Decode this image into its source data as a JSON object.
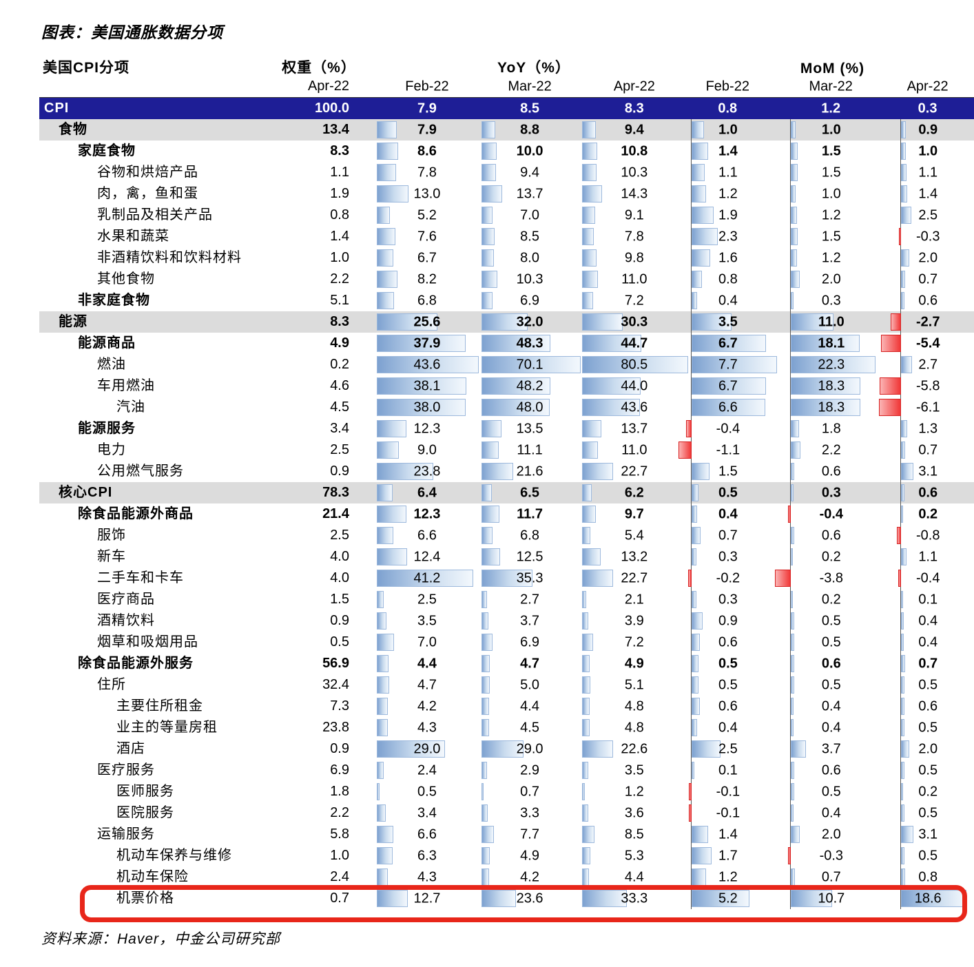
{
  "colors": {
    "header_navy": "#1E1E96",
    "header_text": "#FFFFFF",
    "section_gray": "#DCDCDC",
    "bar_blue_start": "#7DA1D0",
    "bar_blue_end": "#F3F8FD",
    "bar_blue_border": "#9CB8DC",
    "bar_red_start": "#F03838",
    "bar_red_end": "#FBB4B4",
    "bar_red_border": "#D62020",
    "highlight_box": "#E8261A",
    "axis_line": "#555555"
  },
  "header": {
    "label": "美国CPI分项",
    "weight_group": "权重（%）",
    "yoy_group": "YoY（%）",
    "mom_group": "MoM (%)",
    "sub_dates": [
      "Apr-22",
      "Feb-22",
      "Mar-22",
      "Apr-22",
      "Feb-22",
      "Mar-22",
      "Apr-22"
    ]
  },
  "chart_data": {
    "type": "table",
    "title": "图表：美国通胀数据分项",
    "source": "资料来源：Haver，中金公司研究部",
    "columns": [
      "美国CPI分项",
      "权重（%） Apr-22",
      "YoY（%） Feb-22",
      "YoY（%） Mar-22",
      "YoY（%） Apr-22",
      "MoM（%） Feb-22",
      "MoM（%） Mar-22",
      "MoM（%） Apr-22"
    ],
    "highlighted_row": "机票价格",
    "rows": [
      {
        "label": "CPI",
        "indent": 0,
        "style": "cpi",
        "weight": 100.0,
        "yoy": [
          7.9,
          8.5,
          8.3
        ],
        "mom": [
          0.8,
          1.2,
          0.3
        ]
      },
      {
        "label": "食物",
        "indent": 1,
        "style": "section",
        "weight": 13.4,
        "yoy": [
          7.9,
          8.8,
          9.4
        ],
        "mom": [
          1.0,
          1.0,
          0.9
        ]
      },
      {
        "label": "家庭食物",
        "indent": 2,
        "style": "bold",
        "weight": 8.3,
        "yoy": [
          8.6,
          10.0,
          10.8
        ],
        "mom": [
          1.4,
          1.5,
          1.0
        ]
      },
      {
        "label": "谷物和烘焙产品",
        "indent": 3,
        "style": "leaf",
        "weight": 1.1,
        "yoy": [
          7.8,
          9.4,
          10.3
        ],
        "mom": [
          1.1,
          1.5,
          1.1
        ]
      },
      {
        "label": "肉，禽，鱼和蛋",
        "indent": 3,
        "style": "leaf",
        "weight": 1.9,
        "yoy": [
          13.0,
          13.7,
          14.3
        ],
        "mom": [
          1.2,
          1.0,
          1.4
        ]
      },
      {
        "label": "乳制品及相关产品",
        "indent": 3,
        "style": "leaf",
        "weight": 0.8,
        "yoy": [
          5.2,
          7.0,
          9.1
        ],
        "mom": [
          1.9,
          1.2,
          2.5
        ]
      },
      {
        "label": "水果和蔬菜",
        "indent": 3,
        "style": "leaf",
        "weight": 1.4,
        "yoy": [
          7.6,
          8.5,
          7.8
        ],
        "mom": [
          2.3,
          1.5,
          -0.3
        ]
      },
      {
        "label": "非酒精饮料和饮料材料",
        "indent": 3,
        "style": "leaf",
        "weight": 1.0,
        "yoy": [
          6.7,
          8.0,
          9.8
        ],
        "mom": [
          1.6,
          1.2,
          2.0
        ]
      },
      {
        "label": "其他食物",
        "indent": 3,
        "style": "leaf",
        "weight": 2.2,
        "yoy": [
          8.2,
          10.3,
          11.0
        ],
        "mom": [
          0.8,
          2.0,
          0.7
        ]
      },
      {
        "label": "非家庭食物",
        "indent": 2,
        "style": "labelbold",
        "weight": 5.1,
        "yoy": [
          6.8,
          6.9,
          7.2
        ],
        "mom": [
          0.4,
          0.3,
          0.6
        ]
      },
      {
        "label": "能源",
        "indent": 1,
        "style": "section",
        "weight": 8.3,
        "yoy": [
          25.6,
          32.0,
          30.3
        ],
        "mom": [
          3.5,
          11.0,
          -2.7
        ]
      },
      {
        "label": "能源商品",
        "indent": 2,
        "style": "bold",
        "weight": 4.9,
        "yoy": [
          37.9,
          48.3,
          44.7
        ],
        "mom": [
          6.7,
          18.1,
          -5.4
        ]
      },
      {
        "label": "燃油",
        "indent": 3,
        "style": "leaf",
        "weight": 0.2,
        "yoy": [
          43.6,
          70.1,
          80.5
        ],
        "mom": [
          7.7,
          22.3,
          2.7
        ]
      },
      {
        "label": "车用燃油",
        "indent": 3,
        "style": "leaf",
        "weight": 4.6,
        "yoy": [
          38.1,
          48.2,
          44.0
        ],
        "mom": [
          6.7,
          18.3,
          -5.8
        ]
      },
      {
        "label": "汽油",
        "indent": 4,
        "style": "leaf",
        "weight": 4.5,
        "yoy": [
          38.0,
          48.0,
          43.6
        ],
        "mom": [
          6.6,
          18.3,
          -6.1
        ]
      },
      {
        "label": "能源服务",
        "indent": 2,
        "style": "labelbold",
        "weight": 3.4,
        "yoy": [
          12.3,
          13.5,
          13.7
        ],
        "mom": [
          -0.4,
          1.8,
          1.3
        ]
      },
      {
        "label": "电力",
        "indent": 3,
        "style": "leaf",
        "weight": 2.5,
        "yoy": [
          9.0,
          11.1,
          11.0
        ],
        "mom": [
          -1.1,
          2.2,
          0.7
        ]
      },
      {
        "label": "公用燃气服务",
        "indent": 3,
        "style": "leaf",
        "weight": 0.9,
        "yoy": [
          23.8,
          21.6,
          22.7
        ],
        "mom": [
          1.5,
          0.6,
          3.1
        ]
      },
      {
        "label": "核心CPI",
        "indent": 1,
        "style": "section",
        "weight": 78.3,
        "yoy": [
          6.4,
          6.5,
          6.2
        ],
        "mom": [
          0.5,
          0.3,
          0.6
        ]
      },
      {
        "label": "除食品能源外商品",
        "indent": 2,
        "style": "bold",
        "weight": 21.4,
        "yoy": [
          12.3,
          11.7,
          9.7
        ],
        "mom": [
          0.4,
          -0.4,
          0.2
        ]
      },
      {
        "label": "服饰",
        "indent": 3,
        "style": "leaf",
        "weight": 2.5,
        "yoy": [
          6.6,
          6.8,
          5.4
        ],
        "mom": [
          0.7,
          0.6,
          -0.8
        ]
      },
      {
        "label": "新车",
        "indent": 3,
        "style": "leaf",
        "weight": 4.0,
        "yoy": [
          12.4,
          12.5,
          13.2
        ],
        "mom": [
          0.3,
          0.2,
          1.1
        ]
      },
      {
        "label": "二手车和卡车",
        "indent": 3,
        "style": "leaf",
        "weight": 4.0,
        "yoy": [
          41.2,
          35.3,
          22.7
        ],
        "mom": [
          -0.2,
          -3.8,
          -0.4
        ]
      },
      {
        "label": "医疗商品",
        "indent": 3,
        "style": "leaf",
        "weight": 1.5,
        "yoy": [
          2.5,
          2.7,
          2.1
        ],
        "mom": [
          0.3,
          0.2,
          0.1
        ]
      },
      {
        "label": "酒精饮料",
        "indent": 3,
        "style": "leaf",
        "weight": 0.9,
        "yoy": [
          3.5,
          3.7,
          3.9
        ],
        "mom": [
          0.9,
          0.5,
          0.4
        ]
      },
      {
        "label": "烟草和吸烟用品",
        "indent": 3,
        "style": "leaf",
        "weight": 0.5,
        "yoy": [
          7.0,
          6.9,
          7.2
        ],
        "mom": [
          0.6,
          0.5,
          0.4
        ]
      },
      {
        "label": "除食品能源外服务",
        "indent": 2,
        "style": "bold",
        "weight": 56.9,
        "yoy": [
          4.4,
          4.7,
          4.9
        ],
        "mom": [
          0.5,
          0.6,
          0.7
        ]
      },
      {
        "label": "住所",
        "indent": 3,
        "style": "leaf",
        "weight": 32.4,
        "yoy": [
          4.7,
          5.0,
          5.1
        ],
        "mom": [
          0.5,
          0.5,
          0.5
        ]
      },
      {
        "label": "主要住所租金",
        "indent": 4,
        "style": "leaf",
        "weight": 7.3,
        "yoy": [
          4.2,
          4.4,
          4.8
        ],
        "mom": [
          0.6,
          0.4,
          0.6
        ]
      },
      {
        "label": "业主的等量房租",
        "indent": 4,
        "style": "leaf",
        "weight": 23.8,
        "yoy": [
          4.3,
          4.5,
          4.8
        ],
        "mom": [
          0.4,
          0.4,
          0.5
        ]
      },
      {
        "label": "酒店",
        "indent": 4,
        "style": "leaf",
        "weight": 0.9,
        "yoy": [
          29.0,
          29.0,
          22.6
        ],
        "mom": [
          2.5,
          3.7,
          2.0
        ]
      },
      {
        "label": "医疗服务",
        "indent": 3,
        "style": "leaf",
        "weight": 6.9,
        "yoy": [
          2.4,
          2.9,
          3.5
        ],
        "mom": [
          0.1,
          0.6,
          0.5
        ]
      },
      {
        "label": "医师服务",
        "indent": 4,
        "style": "leaf",
        "weight": 1.8,
        "yoy": [
          0.5,
          0.7,
          1.2
        ],
        "mom": [
          -0.1,
          0.5,
          0.2
        ]
      },
      {
        "label": "医院服务",
        "indent": 4,
        "style": "leaf",
        "weight": 2.2,
        "yoy": [
          3.4,
          3.3,
          3.6
        ],
        "mom": [
          -0.1,
          0.4,
          0.5
        ]
      },
      {
        "label": "运输服务",
        "indent": 3,
        "style": "leaf",
        "weight": 5.8,
        "yoy": [
          6.6,
          7.7,
          8.5
        ],
        "mom": [
          1.4,
          2.0,
          3.1
        ]
      },
      {
        "label": "机动车保养与维修",
        "indent": 4,
        "style": "leaf",
        "weight": 1.0,
        "yoy": [
          6.3,
          4.9,
          5.3
        ],
        "mom": [
          1.7,
          -0.3,
          0.5
        ]
      },
      {
        "label": "机动车保险",
        "indent": 4,
        "style": "leaf",
        "weight": 2.4,
        "yoy": [
          4.3,
          4.2,
          4.4
        ],
        "mom": [
          1.2,
          0.7,
          0.8
        ]
      },
      {
        "label": "机票价格",
        "indent": 4,
        "style": "leaf",
        "highlight": true,
        "weight": 0.7,
        "yoy": [
          12.7,
          23.6,
          33.3
        ],
        "mom": [
          5.2,
          10.7,
          18.6
        ]
      }
    ]
  }
}
